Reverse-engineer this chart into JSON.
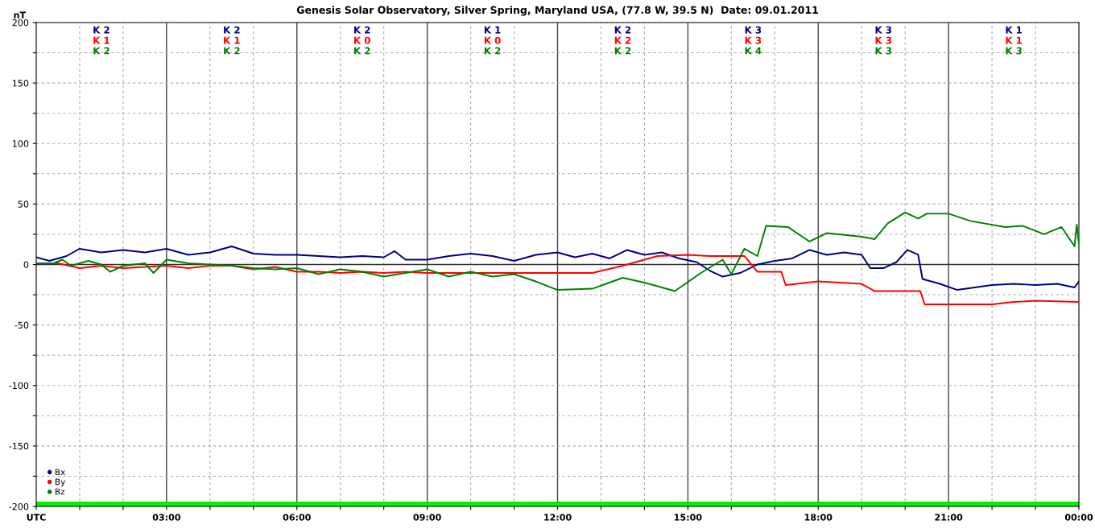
{
  "chart_data": {
    "type": "line",
    "title": "Genesis Solar Observatory, Silver Spring, Maryland USA, (77.8 W, 39.5 N)  Date: 09.01.2011",
    "ylabel": "nT",
    "xlim": [
      0,
      24
    ],
    "ylim": [
      -200,
      200
    ],
    "xticks": [
      {
        "value": 0,
        "label": "UTC"
      },
      {
        "value": 1,
        "label": null
      },
      {
        "value": 2,
        "label": null
      },
      {
        "value": 3,
        "label": "03:00"
      },
      {
        "value": 4,
        "label": null
      },
      {
        "value": 5,
        "label": null
      },
      {
        "value": 6,
        "label": "06:00"
      },
      {
        "value": 7,
        "label": null
      },
      {
        "value": 8,
        "label": null
      },
      {
        "value": 9,
        "label": "09:00"
      },
      {
        "value": 10,
        "label": null
      },
      {
        "value": 11,
        "label": null
      },
      {
        "value": 12,
        "label": "12:00"
      },
      {
        "value": 13,
        "label": null
      },
      {
        "value": 14,
        "label": null
      },
      {
        "value": 15,
        "label": "15:00"
      },
      {
        "value": 16,
        "label": null
      },
      {
        "value": 17,
        "label": null
      },
      {
        "value": 18,
        "label": "18:00"
      },
      {
        "value": 19,
        "label": null
      },
      {
        "value": 20,
        "label": null
      },
      {
        "value": 21,
        "label": "21:00"
      },
      {
        "value": 22,
        "label": null
      },
      {
        "value": 23,
        "label": null
      },
      {
        "value": 24,
        "label": "00:00"
      }
    ],
    "yticks": [
      -200,
      {
        "value": -175,
        "label": null
      },
      -150,
      {
        "value": -125,
        "label": null
      },
      -100,
      {
        "value": -75,
        "label": null
      },
      -50,
      {
        "value": -25,
        "label": null
      },
      0,
      {
        "value": 25,
        "label": null
      },
      50,
      {
        "value": 75,
        "label": null
      },
      100,
      {
        "value": 125,
        "label": null
      },
      150,
      {
        "value": 175,
        "label": null
      },
      200
    ],
    "grid": true,
    "legend": "bottom left",
    "line_style": "solid",
    "marker": "none",
    "series": [
      {
        "name": "Bx",
        "color": "#000080",
        "x": [
          0,
          0.3,
          0.7,
          1,
          1.5,
          2,
          2.5,
          3,
          3.5,
          4,
          4.5,
          5,
          5.5,
          6,
          6.5,
          7,
          7.5,
          8,
          8.25,
          8.5,
          9,
          9.5,
          10,
          10.5,
          11,
          11.5,
          12,
          12.4,
          12.8,
          13.2,
          13.6,
          14,
          14.4,
          14.8,
          15.2,
          15.5,
          15.8,
          16.2,
          16.6,
          17,
          17.4,
          17.8,
          18.2,
          18.6,
          19,
          19.2,
          19.5,
          19.8,
          20.05,
          20.3,
          20.4,
          20.8,
          21.2,
          21.6,
          22,
          22.5,
          23,
          23.5,
          23.9,
          24
        ],
        "values": [
          6,
          3,
          7,
          13,
          10,
          12,
          10,
          13,
          8,
          10,
          15,
          9,
          8,
          8,
          7,
          6,
          7,
          6,
          11,
          4,
          4,
          7,
          9,
          7,
          3,
          8,
          10,
          6,
          9,
          5,
          12,
          8,
          10,
          5,
          2,
          -5,
          -10,
          -7,
          0,
          3,
          5,
          12,
          8,
          10,
          8,
          -3,
          -3,
          2,
          12,
          8,
          -12,
          -16,
          -21,
          -19,
          -17,
          -16,
          -17,
          -16,
          -19,
          -14
        ]
      },
      {
        "name": "By",
        "color": "#ff0000",
        "x": [
          0,
          0.5,
          1,
          1.5,
          2,
          3,
          3.5,
          4,
          4.5,
          5,
          5.5,
          6,
          6.5,
          7,
          7.5,
          8,
          8.5,
          9,
          10,
          11,
          12,
          12.8,
          13.5,
          14.3,
          15,
          15.5,
          16.3,
          16.6,
          17.15,
          17.25,
          18,
          19,
          19.3,
          20.35,
          20.45,
          21,
          22,
          22.5,
          23,
          24
        ],
        "values": [
          1,
          1,
          -3,
          -1,
          -3,
          -1,
          -3,
          -1,
          -1,
          -4,
          -2,
          -6,
          -6,
          -7,
          -6,
          -7,
          -6,
          -7,
          -7,
          -7,
          -7,
          -7,
          -1,
          7,
          8,
          7,
          7,
          -6,
          -6,
          -17,
          -14,
          -16,
          -22,
          -22,
          -33,
          -33,
          -33,
          -31,
          -30,
          -31
        ]
      },
      {
        "name": "Bz",
        "color": "#008000",
        "x": [
          0,
          0.4,
          0.6,
          0.8,
          1,
          1.2,
          1.5,
          1.7,
          2,
          2.5,
          2.7,
          3,
          3.5,
          4,
          4.5,
          5,
          5.5,
          6,
          6.5,
          7,
          7.5,
          8,
          8.5,
          9,
          9.5,
          10,
          10.5,
          11,
          11.5,
          12,
          12.8,
          13.5,
          14,
          14.7,
          15.3,
          15.8,
          16,
          16.3,
          16.6,
          16.8,
          17.3,
          17.8,
          18.2,
          19,
          19.3,
          19.6,
          20,
          20.3,
          20.5,
          21,
          21.5,
          22.3,
          22.7,
          23.2,
          23.6,
          23.9,
          23.95,
          24
        ],
        "values": [
          1,
          1,
          4,
          -1,
          1,
          3,
          0,
          -6,
          -1,
          1,
          -7,
          4,
          1,
          0,
          -1,
          -3,
          -4,
          -3,
          -8,
          -4,
          -6,
          -10,
          -7,
          -4,
          -10,
          -6,
          -10,
          -8,
          -14,
          -21,
          -20,
          -11,
          -15,
          -22,
          -7,
          4,
          -8,
          13,
          7,
          32,
          31,
          19,
          26,
          23,
          21,
          34,
          43,
          38,
          42,
          42,
          36,
          31,
          32,
          25,
          31,
          15,
          33,
          17
        ]
      }
    ],
    "ref_lines": [
      {
        "axis": "y",
        "value": 0,
        "color": "#333333"
      }
    ],
    "bands": [
      {
        "axis": "y",
        "from": -200,
        "to": -196,
        "color": "#00ee00"
      }
    ],
    "annotations": [
      "K 2",
      "K 1",
      "K 2",
      "K 2",
      "K 1",
      "K 2",
      "K 2",
      "K 0",
      "K 2",
      "K 1",
      "K 0",
      "K 2",
      "K 2",
      "K 2",
      "K 2",
      "K 3",
      "K 3",
      "K 4",
      "K 3",
      "K 3",
      "K 3",
      "K 1",
      "K 1",
      "K 3"
    ]
  }
}
